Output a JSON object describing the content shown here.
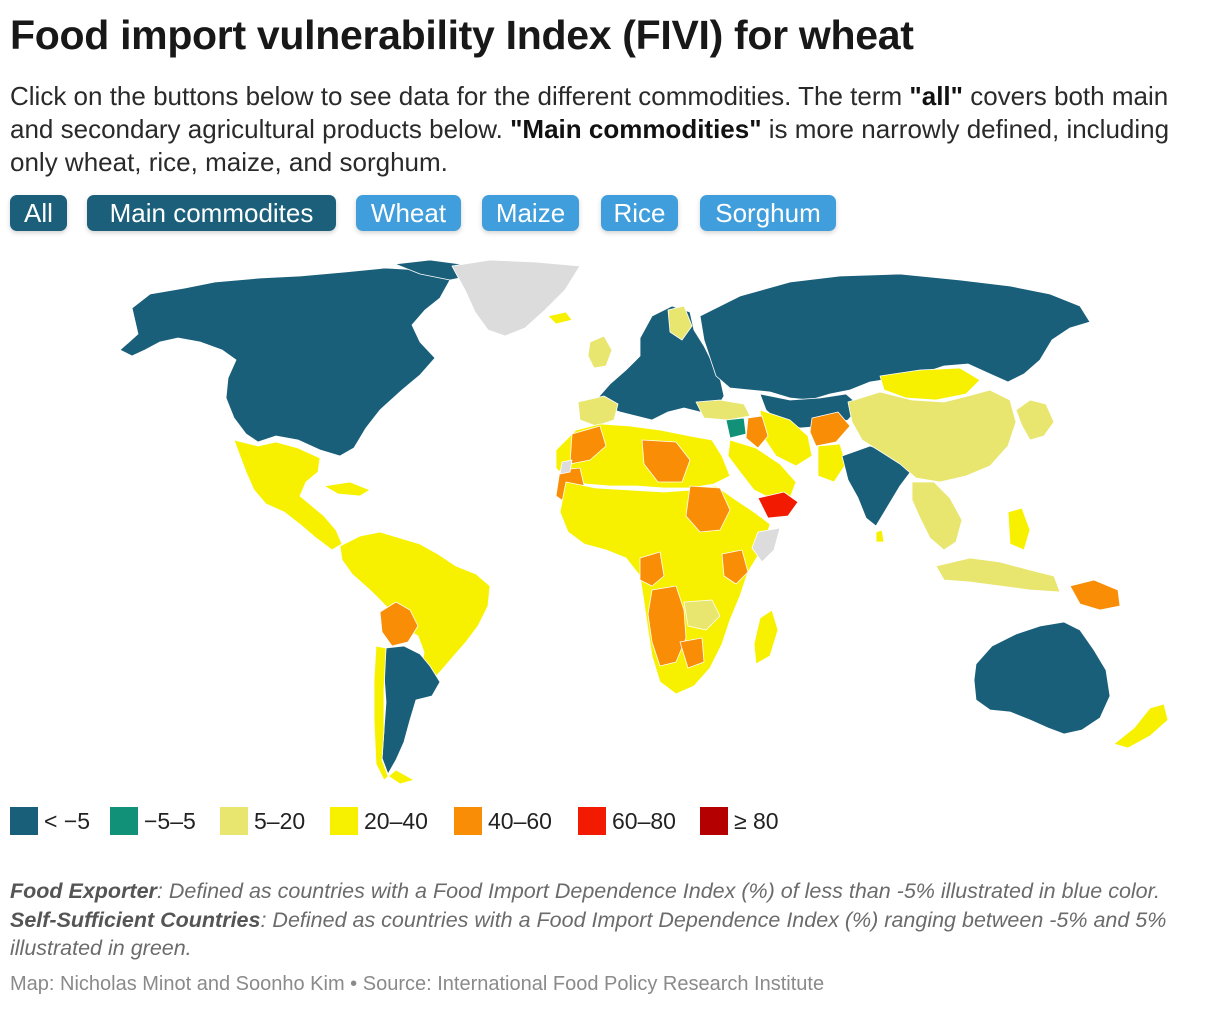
{
  "title": "Food import vulnerability Index (FIVI) for wheat",
  "description": {
    "part1": "Click on the buttons below to see data for the different commodities. The term ",
    "quote_all": "\"all\"",
    "part2": " covers both main and secondary agricultural products below. ",
    "quote_main": "\"Main commodities\"",
    "part3": " is more narrowly defined, including only wheat, rice, maize, and sorghum."
  },
  "buttons": [
    {
      "label": "All",
      "state": "active"
    },
    {
      "label": "Main commodites",
      "state": "active"
    },
    {
      "label": "Wheat",
      "state": "inactive"
    },
    {
      "label": "Maize",
      "state": "inactive"
    },
    {
      "label": "Rice",
      "state": "inactive"
    },
    {
      "label": "Sorghum",
      "state": "inactive"
    }
  ],
  "colors": {
    "button_active": "#1b5f7b",
    "button_inactive": "#3f9edb",
    "no_data": "#dcdcdc"
  },
  "legend": [
    {
      "label": "< −5",
      "color": "#1a5f7a"
    },
    {
      "label": "−5–5",
      "color": "#109178"
    },
    {
      "label": "5–20",
      "color": "#e8e66e"
    },
    {
      "label": "20–40",
      "color": "#f7f100"
    },
    {
      "label": "40–60",
      "color": "#f98d06"
    },
    {
      "label": "60–80",
      "color": "#f21a00"
    },
    {
      "label": "≥ 80",
      "color": "#b40000"
    }
  ],
  "map_regions": [
    {
      "name": "Canada & USA",
      "bin": "< −5"
    },
    {
      "name": "Greenland",
      "bin": "no data"
    },
    {
      "name": "Mexico & Central America",
      "bin": "20–40"
    },
    {
      "name": "Brazil & Northern South America",
      "bin": "20–40"
    },
    {
      "name": "Bolivia",
      "bin": "40–60"
    },
    {
      "name": "Argentina & Uruguay",
      "bin": "< −5"
    },
    {
      "name": "Europe",
      "bin": "< −5"
    },
    {
      "name": "Russia & Kazakhstan",
      "bin": "< −5"
    },
    {
      "name": "North Africa",
      "bin": "20–40"
    },
    {
      "name": "Sub-Saharan Africa",
      "bin": "20–40"
    },
    {
      "name": "Sudan",
      "bin": "40–60"
    },
    {
      "name": "Yemen",
      "bin": "60–80"
    },
    {
      "name": "Syria",
      "bin": "−5–5"
    },
    {
      "name": "China",
      "bin": "5–20"
    },
    {
      "name": "India",
      "bin": "< −5"
    },
    {
      "name": "Afghanistan",
      "bin": "40–60"
    },
    {
      "name": "Southeast Asia",
      "bin": "5–20"
    },
    {
      "name": "Papua New Guinea",
      "bin": "40–60"
    },
    {
      "name": "Australia",
      "bin": "< −5"
    },
    {
      "name": "New Zealand",
      "bin": "20–40"
    }
  ],
  "note": {
    "exporter_term": "Food Exporter",
    "exporter_text": ": Defined as countries with a Food Import Dependence Index (%) of less than -5% illustrated in blue color. ",
    "self_term": "Self-Sufficient Countries",
    "self_text": ": Defined as countries with a Food Import Dependence Index (%) ranging between -5% and 5% illustrated in green."
  },
  "source": "Map: Nicholas Minot and Soonho Kim • Source: International Food Policy Research Institute"
}
